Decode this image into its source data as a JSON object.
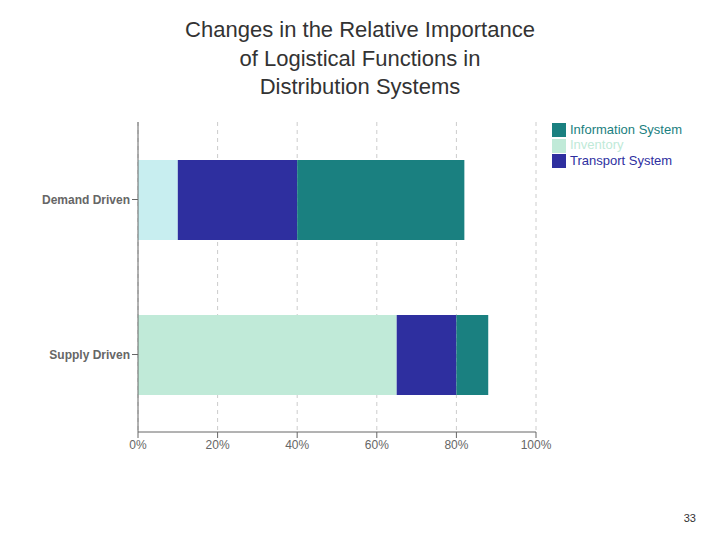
{
  "chart_data": {
    "type": "bar",
    "title": "Changes in the Relative Importance\nof Logistical Functions in\nDistribution Systems",
    "orientation": "horizontal",
    "stacked": true,
    "categories": [
      "Demand Driven",
      "Supply Driven"
    ],
    "series": [
      {
        "name": "Inventory",
        "color": "#C0EAD8",
        "colors": [
          "#C8EEF0",
          "#C0EAD8"
        ],
        "values": [
          0.1,
          0.65
        ]
      },
      {
        "name": "Transport System",
        "color": "#2E2F9F",
        "values": [
          0.3,
          0.15
        ]
      },
      {
        "name": "Information System",
        "color": "#1A8080",
        "values": [
          0.42,
          0.08
        ]
      }
    ],
    "xlim": [
      0,
      1.0
    ],
    "xticks": [
      {
        "value": 0,
        "label": "0%"
      },
      {
        "value": 0.2,
        "label": "20%"
      },
      {
        "value": 0.4,
        "label": "40%"
      },
      {
        "value": 0.6,
        "label": "60%"
      },
      {
        "value": 0.8,
        "label": "80%"
      },
      {
        "value": 1.0,
        "label": "100%"
      }
    ],
    "grid": true,
    "legend": "right",
    "annotations": [
      "33"
    ]
  }
}
